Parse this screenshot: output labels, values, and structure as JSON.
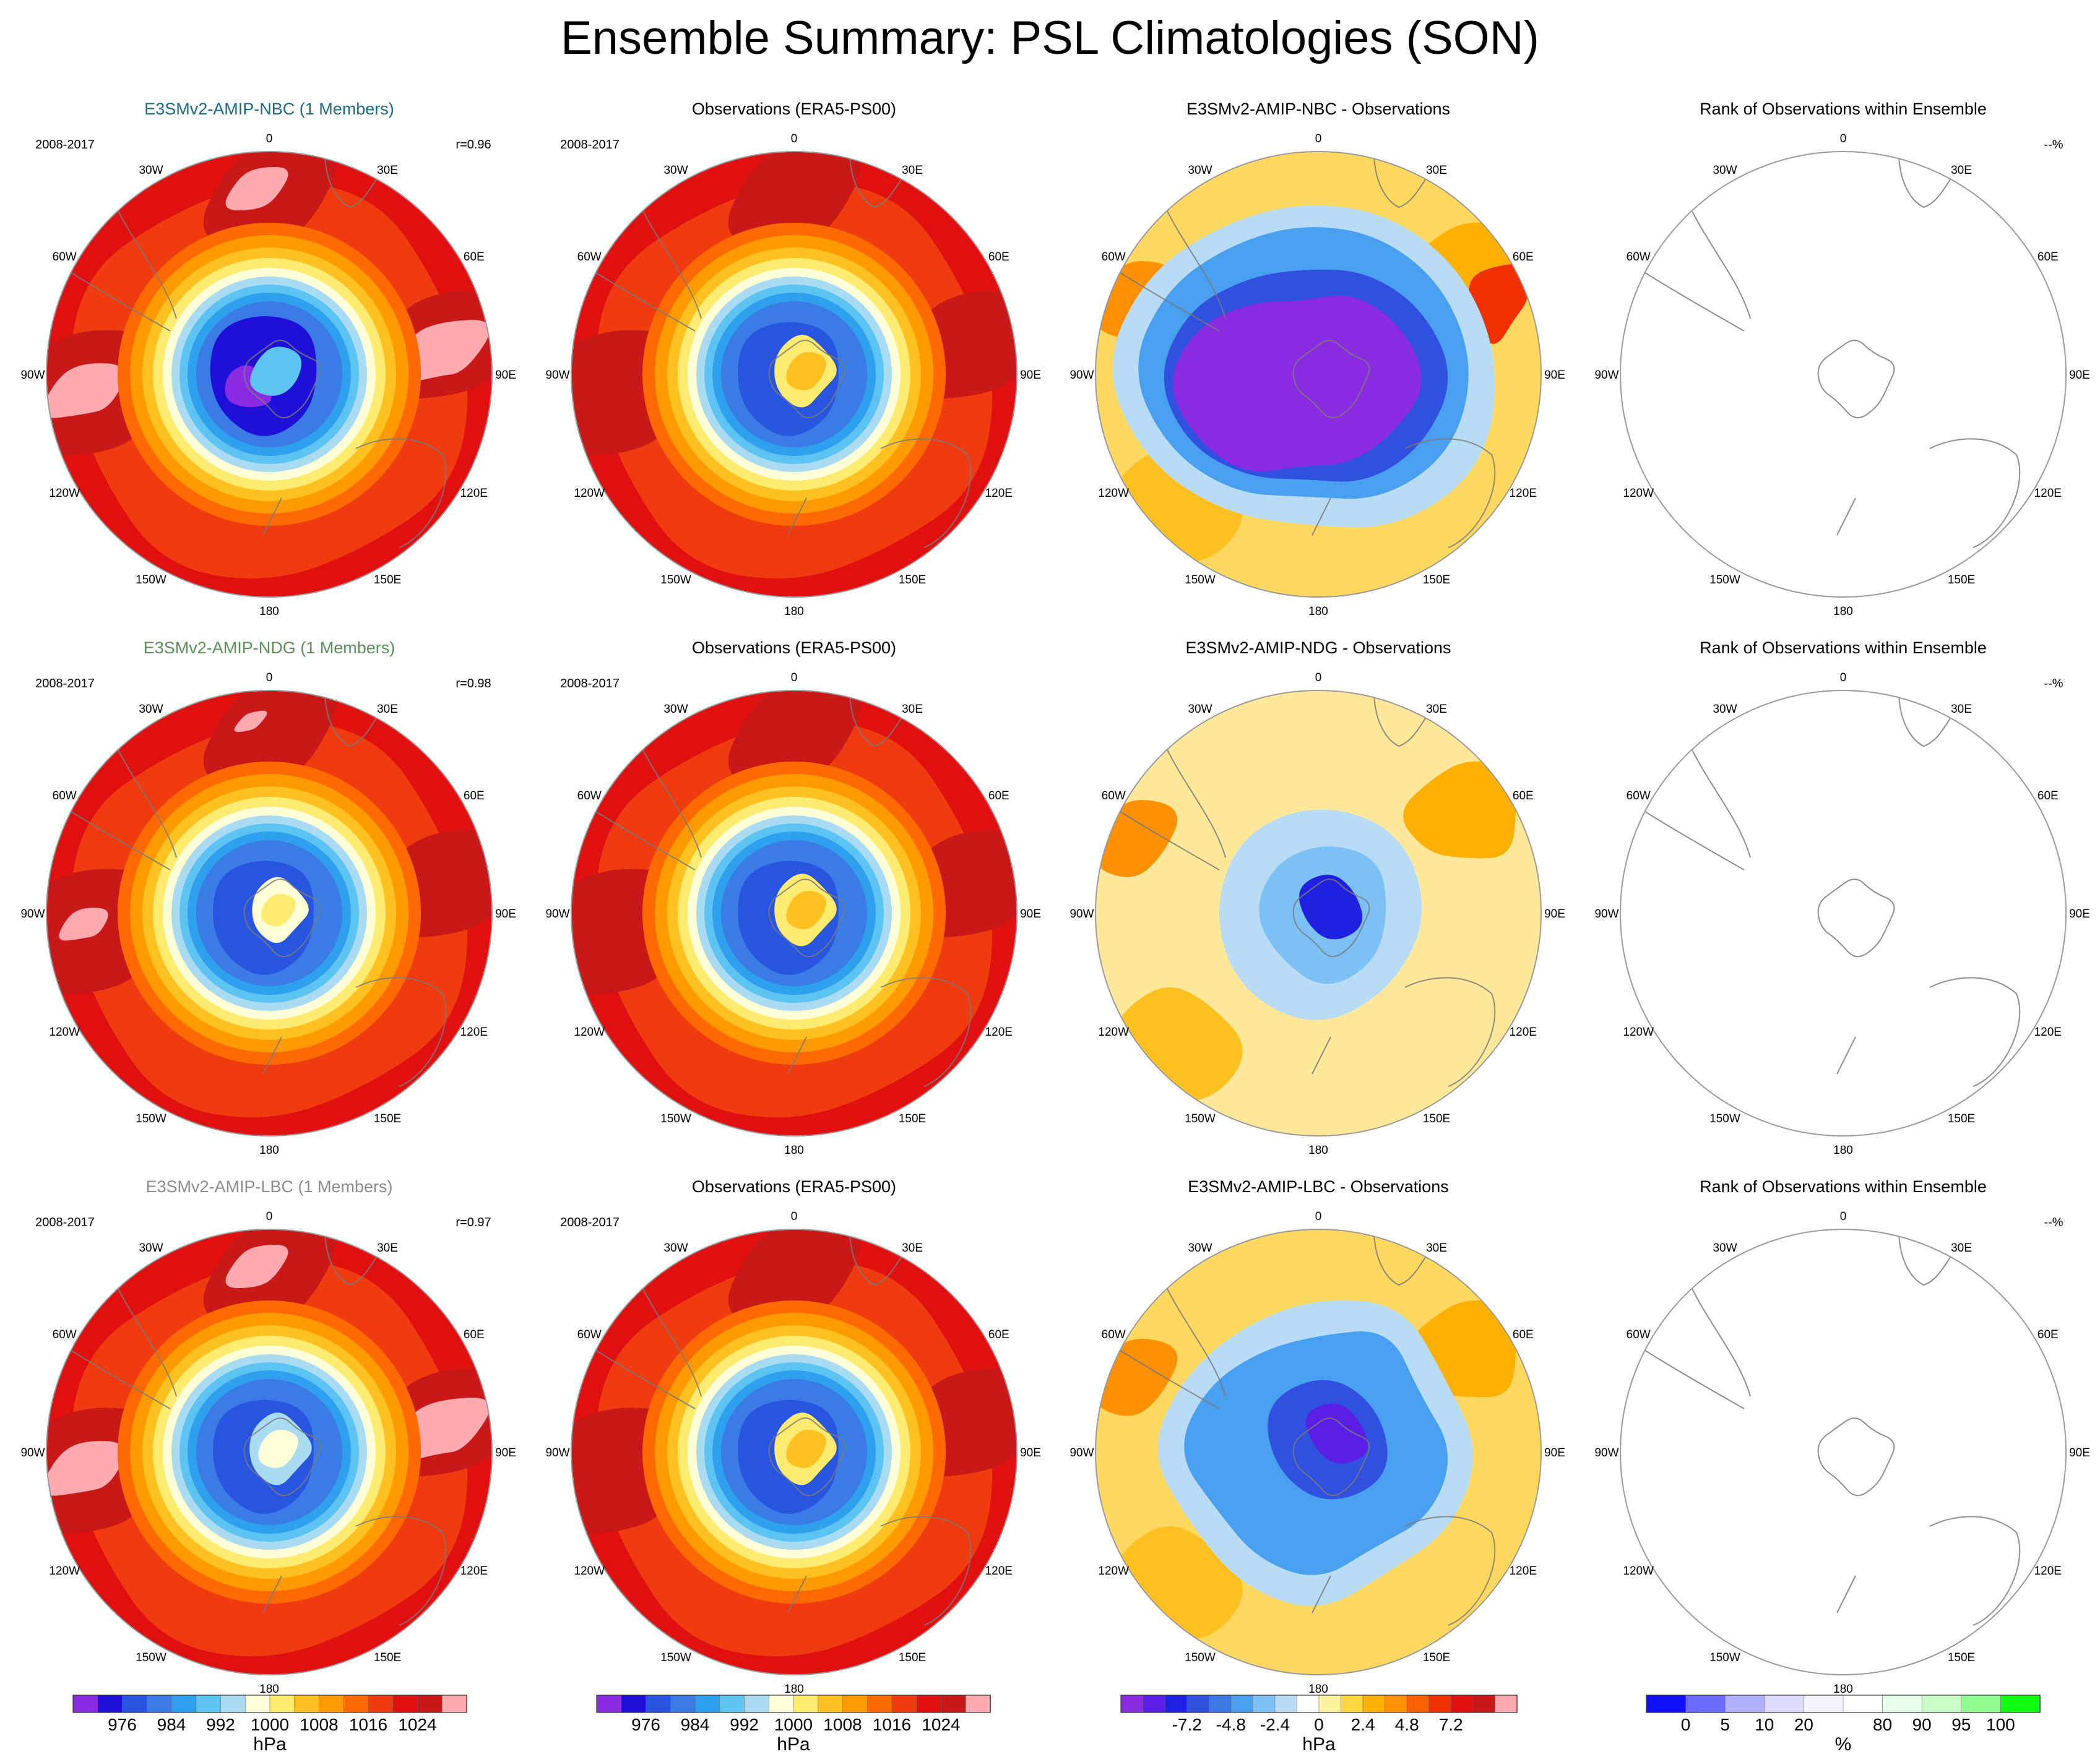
{
  "title": "Ensemble Summary: PSL Climatologies (SON)",
  "rows": [
    {
      "model": {
        "title": "E3SMv2-AMIP-NBC (1 Members)",
        "title_color": "#1a6b8a",
        "period": "2008-2017",
        "correlation": "r=0.96",
        "pattern": "model-nbc"
      },
      "obs": {
        "title": "Observations (ERA5-PS00)",
        "period": "2008-2017",
        "pattern": "obs"
      },
      "diff": {
        "title": "E3SMv2-AMIP-NBC - Observations",
        "pattern": "diff-nbc"
      },
      "rank": {
        "title": "Rank of Observations within Ensemble",
        "note": "--%",
        "pattern": "rank"
      }
    },
    {
      "model": {
        "title": "E3SMv2-AMIP-NDG (1 Members)",
        "title_color": "#5a8f5a",
        "period": "2008-2017",
        "correlation": "r=0.98",
        "pattern": "model-ndg"
      },
      "obs": {
        "title": "Observations (ERA5-PS00)",
        "period": "2008-2017",
        "pattern": "obs"
      },
      "diff": {
        "title": "E3SMv2-AMIP-NDG - Observations",
        "pattern": "diff-ndg"
      },
      "rank": {
        "title": "Rank of Observations within Ensemble",
        "note": "--%",
        "pattern": "rank"
      }
    },
    {
      "model": {
        "title": "E3SMv2-AMIP-LBC (1 Members)",
        "title_color": "#8c8c8c",
        "period": "2008-2017",
        "correlation": "r=0.97",
        "pattern": "model-lbc"
      },
      "obs": {
        "title": "Observations (ERA5-PS00)",
        "period": "2008-2017",
        "pattern": "obs"
      },
      "diff": {
        "title": "E3SMv2-AMIP-LBC - Observations",
        "pattern": "diff-lbc"
      },
      "rank": {
        "title": "Rank of Observations within Ensemble",
        "note": "--%",
        "pattern": "rank"
      }
    }
  ],
  "longitude_labels": [
    "0",
    "30E",
    "60E",
    "90E",
    "120E",
    "150E",
    "180",
    "150W",
    "120W",
    "90W",
    "60W",
    "30W"
  ],
  "colorbars": {
    "psl": {
      "unit": "hPa",
      "colors": [
        "#8a2be2",
        "#1e10d8",
        "#2855e0",
        "#3a7be6",
        "#2fa0ee",
        "#5cc3f2",
        "#a9dcf2",
        "#ffffd8",
        "#ffeb70",
        "#ffc020",
        "#ff9a00",
        "#ff6a00",
        "#f03a10",
        "#e01010",
        "#c81818",
        "#ffaab0"
      ],
      "tick_labels": [
        "976",
        "984",
        "992",
        "1000",
        "1008",
        "1016",
        "1024"
      ],
      "tick_index": [
        2,
        4,
        6,
        8,
        10,
        12,
        14
      ]
    },
    "diff": {
      "unit": "hPa",
      "colors": [
        "#8a2be2",
        "#5a1ee6",
        "#2020e0",
        "#3050e0",
        "#3a78e6",
        "#4aa0f0",
        "#7dc0f5",
        "#b8dcf6",
        "#ffffff",
        "#fff3a0",
        "#ffd840",
        "#ffb000",
        "#ff9000",
        "#ff6000",
        "#f03000",
        "#e01010",
        "#c81818",
        "#ffaab0"
      ],
      "tick_labels": [
        "-7.2",
        "-4.8",
        "-2.4",
        "0",
        "2.4",
        "4.8",
        "7.2"
      ],
      "tick_index": [
        3,
        5,
        7,
        9,
        11,
        13,
        15
      ]
    },
    "rank": {
      "unit": "%",
      "colors": [
        "#1010ff",
        "#6a6aff",
        "#b0b0ff",
        "#dcdcff",
        "#f4f4ff",
        "#ffffff",
        "#e8ffe8",
        "#c8ffc8",
        "#90ff90",
        "#10ff10"
      ],
      "tick_labels": [
        "0",
        "5",
        "10",
        "20",
        "80",
        "90",
        "95",
        "100"
      ],
      "tick_index": [
        1,
        2,
        3,
        4,
        6,
        7,
        8,
        9
      ]
    }
  }
}
